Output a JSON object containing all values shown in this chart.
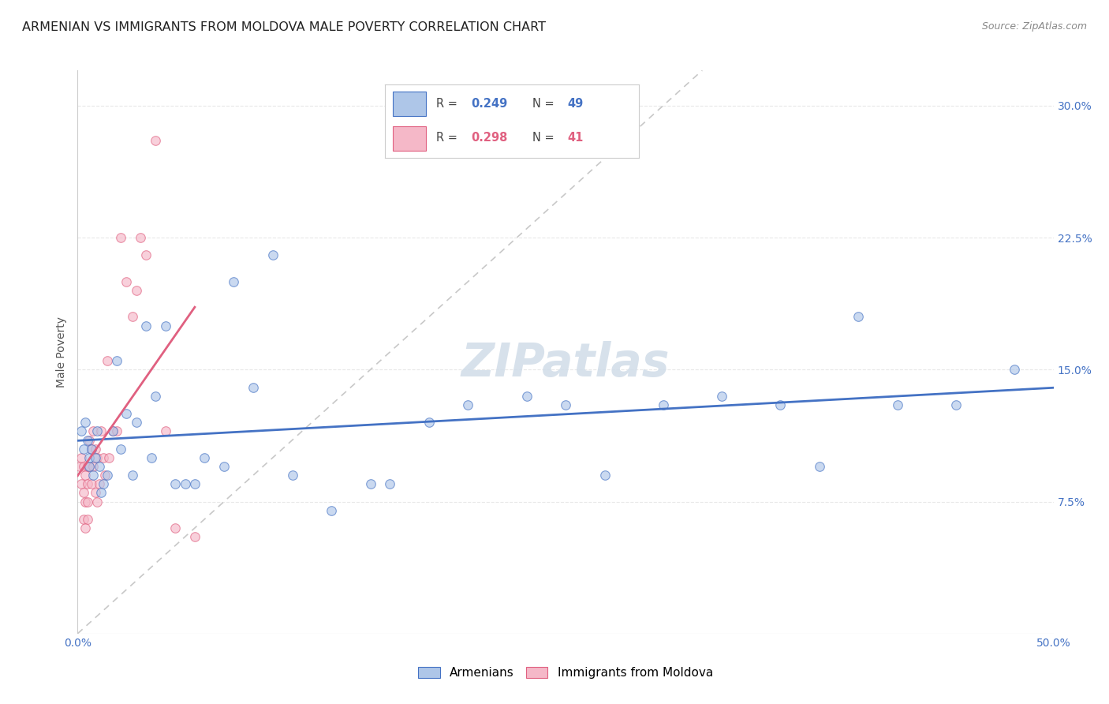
{
  "title": "ARMENIAN VS IMMIGRANTS FROM MOLDOVA MALE POVERTY CORRELATION CHART",
  "source": "Source: ZipAtlas.com",
  "ylabel": "Male Poverty",
  "xlim": [
    0.0,
    0.5
  ],
  "ylim": [
    0.0,
    0.32
  ],
  "legend_blue_r": "0.249",
  "legend_blue_n": "49",
  "legend_pink_r": "0.298",
  "legend_pink_n": "41",
  "watermark": "ZIPatlas",
  "armenians_x": [
    0.002,
    0.003,
    0.004,
    0.005,
    0.006,
    0.006,
    0.007,
    0.008,
    0.009,
    0.01,
    0.011,
    0.012,
    0.013,
    0.015,
    0.018,
    0.02,
    0.022,
    0.025,
    0.028,
    0.03,
    0.035,
    0.038,
    0.04,
    0.045,
    0.05,
    0.055,
    0.06,
    0.065,
    0.075,
    0.08,
    0.09,
    0.1,
    0.11,
    0.13,
    0.15,
    0.16,
    0.18,
    0.2,
    0.23,
    0.25,
    0.27,
    0.3,
    0.33,
    0.36,
    0.38,
    0.4,
    0.42,
    0.45,
    0.48
  ],
  "armenians_y": [
    0.115,
    0.105,
    0.12,
    0.11,
    0.095,
    0.1,
    0.105,
    0.09,
    0.1,
    0.115,
    0.095,
    0.08,
    0.085,
    0.09,
    0.115,
    0.155,
    0.105,
    0.125,
    0.09,
    0.12,
    0.175,
    0.1,
    0.135,
    0.175,
    0.085,
    0.085,
    0.085,
    0.1,
    0.095,
    0.2,
    0.14,
    0.215,
    0.09,
    0.07,
    0.085,
    0.085,
    0.12,
    0.13,
    0.135,
    0.13,
    0.09,
    0.13,
    0.135,
    0.13,
    0.095,
    0.18,
    0.13,
    0.13,
    0.15
  ],
  "moldova_x": [
    0.001,
    0.002,
    0.002,
    0.003,
    0.003,
    0.003,
    0.004,
    0.004,
    0.004,
    0.005,
    0.005,
    0.005,
    0.005,
    0.006,
    0.006,
    0.007,
    0.007,
    0.008,
    0.008,
    0.009,
    0.009,
    0.01,
    0.01,
    0.011,
    0.012,
    0.013,
    0.014,
    0.015,
    0.016,
    0.018,
    0.02,
    0.022,
    0.025,
    0.028,
    0.03,
    0.032,
    0.035,
    0.04,
    0.045,
    0.05,
    0.06
  ],
  "moldova_y": [
    0.095,
    0.1,
    0.085,
    0.095,
    0.08,
    0.065,
    0.09,
    0.075,
    0.06,
    0.095,
    0.085,
    0.075,
    0.065,
    0.11,
    0.095,
    0.105,
    0.085,
    0.115,
    0.095,
    0.105,
    0.08,
    0.1,
    0.075,
    0.085,
    0.115,
    0.1,
    0.09,
    0.155,
    0.1,
    0.115,
    0.115,
    0.225,
    0.2,
    0.18,
    0.195,
    0.225,
    0.215,
    0.28,
    0.115,
    0.06,
    0.055
  ],
  "blue_fill": "#aec6e8",
  "pink_fill": "#f5b8c8",
  "blue_edge": "#4472c4",
  "pink_edge": "#e06080",
  "blue_line": "#4472c4",
  "pink_line": "#e06080",
  "diag_color": "#c8c8c8",
  "grid_color": "#e8e8e8",
  "bg_color": "#ffffff",
  "title_fontsize": 11.5,
  "source_fontsize": 9,
  "tick_fontsize": 10,
  "legend_fontsize": 10.5,
  "ylabel_fontsize": 10,
  "watermark_fontsize": 42,
  "watermark_color": "#d0dce8",
  "marker_size": 70,
  "marker_alpha": 0.65,
  "line_width": 2.0
}
